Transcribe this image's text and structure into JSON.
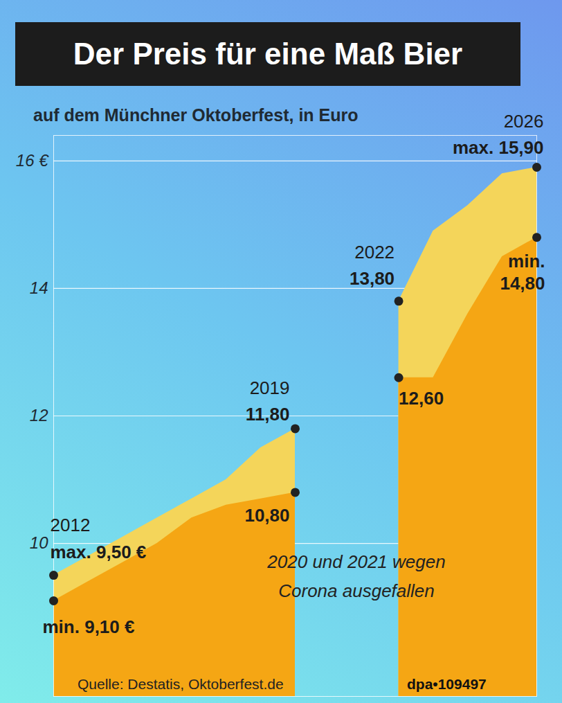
{
  "chart_data": {
    "type": "area",
    "title": "Der Preis für eine Maß Bier",
    "subtitle": "auf dem Münchner Oktoberfest, in Euro",
    "x": [
      2012,
      2013,
      2014,
      2015,
      2016,
      2017,
      2018,
      2019,
      2020,
      2021,
      2022,
      2023,
      2024,
      2025,
      2026
    ],
    "series": [
      {
        "name": "max.",
        "color": "#f4d55a",
        "values": [
          9.5,
          9.8,
          10.1,
          10.4,
          10.7,
          11.0,
          11.5,
          11.8,
          null,
          null,
          13.8,
          14.9,
          15.3,
          15.8,
          15.9
        ]
      },
      {
        "name": "min.",
        "color": "#f5a614",
        "values": [
          9.1,
          9.4,
          9.7,
          10.0,
          10.4,
          10.6,
          10.7,
          10.8,
          null,
          null,
          12.6,
          12.6,
          13.6,
          14.5,
          14.8
        ]
      }
    ],
    "xlim": [
      2012,
      2026
    ],
    "ylim": [
      7.6,
      16.4
    ],
    "yticks": [
      10,
      12,
      14,
      {
        "value": 16,
        "label": "16 €"
      }
    ],
    "grid": true,
    "tick_labels": "y",
    "point_labels": [
      {
        "x": 2012,
        "series": "max.",
        "text": "max. 9,50 €"
      },
      {
        "x": 2012,
        "series": "min.",
        "text": "min. 9,10 €"
      },
      {
        "x": 2019,
        "series": "max.",
        "text": "11,80"
      },
      {
        "x": 2019,
        "series": "min.",
        "text": "10,80"
      },
      {
        "x": 2022,
        "series": "max.",
        "text": "13,80"
      },
      {
        "x": 2022,
        "series": "min.",
        "text": "12,60"
      },
      {
        "x": 2026,
        "series": "max.",
        "text": "max. 15,90"
      },
      {
        "x": 2026,
        "series": "min.",
        "text": "min. 14,80"
      }
    ],
    "year_labels": [
      {
        "x": 2012,
        "text": "2012"
      },
      {
        "x": 2019,
        "text": "2019"
      },
      {
        "x": 2022,
        "text": "2022"
      },
      {
        "x": 2026,
        "text": "2026"
      }
    ],
    "annotation": "2020 und 2021 wegen Corona ausgefallen",
    "source": "Quelle: Destatis, Oktoberfest.de",
    "credit": "dpa•109497"
  }
}
